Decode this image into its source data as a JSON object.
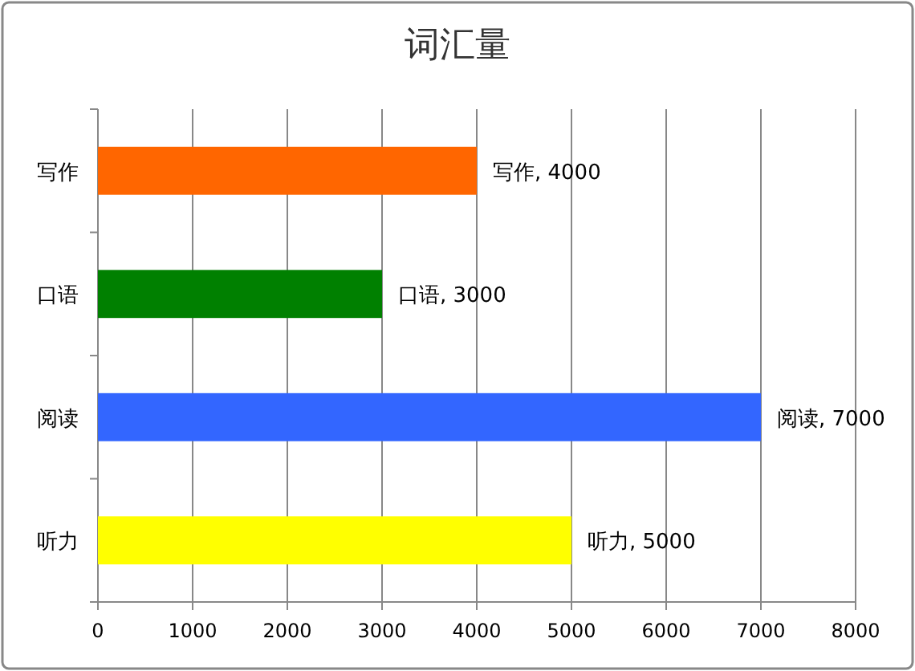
{
  "chart_data": {
    "type": "bar",
    "orientation": "horizontal",
    "title": "词汇量",
    "categories": [
      "写作",
      "口语",
      "阅读",
      "听力"
    ],
    "values": [
      4000,
      3000,
      7000,
      5000
    ],
    "colors": [
      "#ff6600",
      "#008000",
      "#3366ff",
      "#ffff00"
    ],
    "value_labels": [
      "写作, 4000",
      "口语, 3000",
      "阅读, 7000",
      "听力, 5000"
    ],
    "xlim": [
      0,
      8000
    ],
    "xticks": [
      0,
      1000,
      2000,
      3000,
      4000,
      5000,
      6000,
      7000,
      8000
    ],
    "grid": "x"
  }
}
